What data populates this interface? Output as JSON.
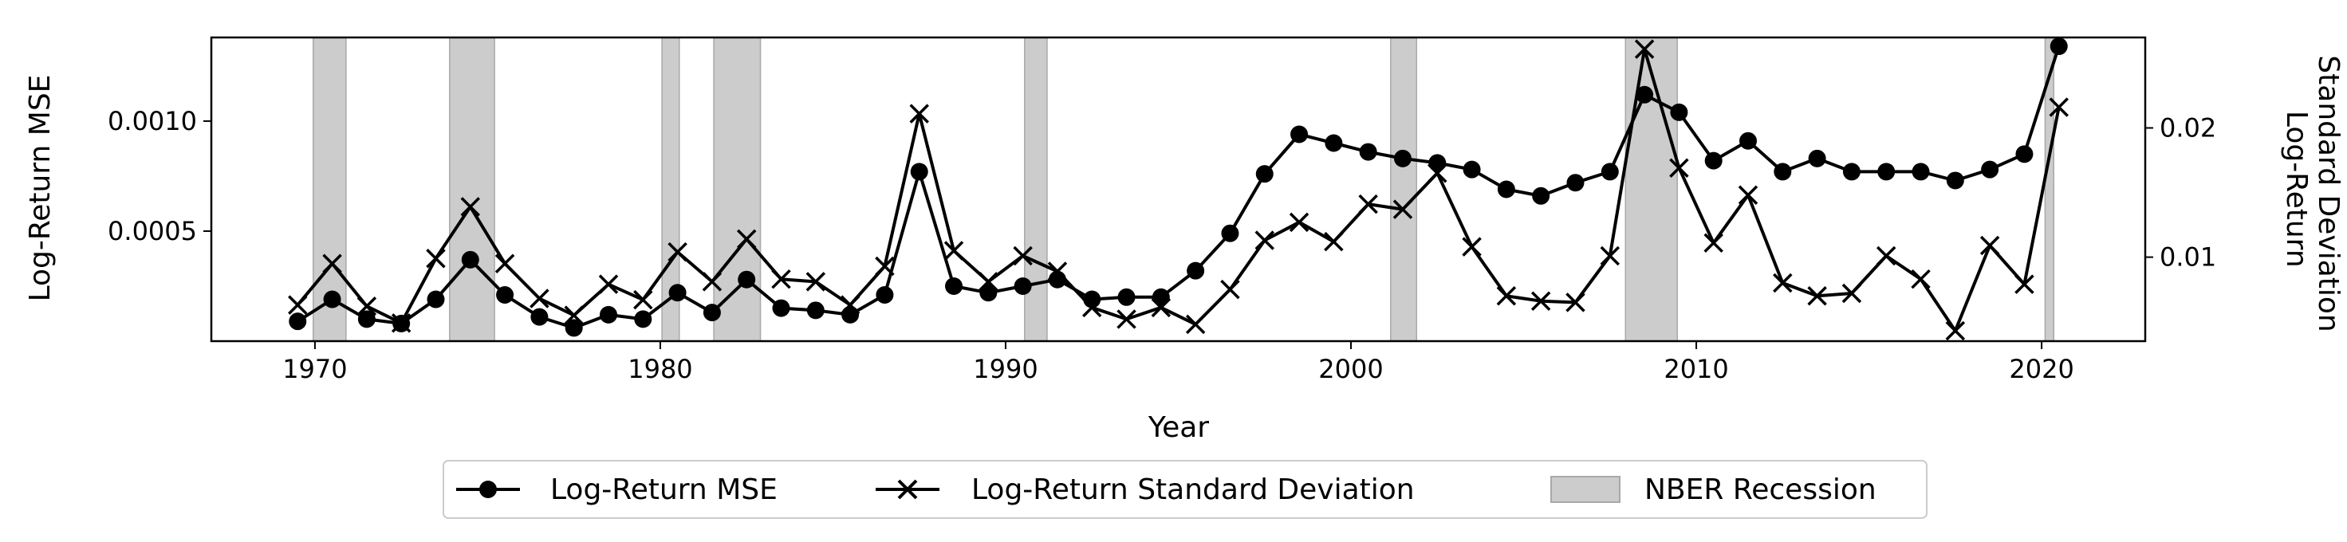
{
  "chart_data": {
    "type": "line",
    "xlabel": "Year",
    "ylabel_left": "Log-Return MSE",
    "ylabel_right": [
      "Log-Return",
      "Standard Deviation"
    ],
    "xlim": [
      1967,
      2023
    ],
    "ylim_left": [
      0.0,
      0.00138
    ],
    "ylim_right": [
      0.0035,
      0.027
    ],
    "x_ticks": [
      {
        "value": 1970,
        "label": "1970"
      },
      {
        "value": 1980,
        "label": "1980"
      },
      {
        "value": 1990,
        "label": "1990"
      },
      {
        "value": 2000,
        "label": "2000"
      },
      {
        "value": 2010,
        "label": "2010"
      },
      {
        "value": 2020,
        "label": "2020"
      }
    ],
    "y_ticks_left": [
      {
        "value": 0.0005,
        "label": "0.0005"
      },
      {
        "value": 0.001,
        "label": "0.0010"
      }
    ],
    "y_ticks_right": [
      {
        "value": 0.01,
        "label": "0.01"
      },
      {
        "value": 0.02,
        "label": "0.02"
      }
    ],
    "x": [
      1969.5,
      1970.5,
      1971.5,
      1972.5,
      1973.5,
      1974.5,
      1975.5,
      1976.5,
      1977.5,
      1978.5,
      1979.5,
      1980.5,
      1981.5,
      1982.5,
      1983.5,
      1984.5,
      1985.5,
      1986.5,
      1987.5,
      1988.5,
      1989.5,
      1990.5,
      1991.5,
      1992.5,
      1993.5,
      1994.5,
      1995.5,
      1996.5,
      1997.5,
      1998.5,
      1999.5,
      2000.5,
      2001.5,
      2002.5,
      2003.5,
      2004.5,
      2005.5,
      2006.5,
      2007.5,
      2008.5,
      2009.5,
      2010.5,
      2011.5,
      2012.5,
      2013.5,
      2014.5,
      2015.5,
      2016.5,
      2017.5,
      2018.5,
      2019.5,
      2020.5
    ],
    "series": [
      {
        "name": "Log-Return MSE",
        "axis": "left",
        "marker": "circle",
        "values": [
          9e-05,
          0.00019,
          0.0001,
          8e-05,
          0.00019,
          0.00037,
          0.00021,
          0.00011,
          6e-05,
          0.00012,
          0.0001,
          0.00022,
          0.00013,
          0.00028,
          0.00015,
          0.00014,
          0.00012,
          0.00021,
          0.00077,
          0.00025,
          0.00022,
          0.00025,
          0.00028,
          0.00019,
          0.0002,
          0.0002,
          0.00032,
          0.00049,
          0.00076,
          0.00094,
          0.0009,
          0.00086,
          0.00083,
          0.00081,
          0.00078,
          0.00069,
          0.00066,
          0.00072,
          0.00077,
          0.00112,
          0.00104,
          0.00082,
          0.00091,
          0.00077,
          0.00083,
          0.00077,
          0.00077,
          0.00077,
          0.00073,
          0.00078,
          0.00085,
          0.00134
        ]
      },
      {
        "name": "Log-Return Standard Deviation",
        "axis": "right",
        "marker": "x",
        "values": [
          0.0063,
          0.0095,
          0.0062,
          0.0049,
          0.0099,
          0.0139,
          0.0095,
          0.0068,
          0.0055,
          0.0079,
          0.0067,
          0.0104,
          0.0081,
          0.0114,
          0.0083,
          0.0081,
          0.0063,
          0.0093,
          0.0211,
          0.0105,
          0.0081,
          0.0101,
          0.0089,
          0.0061,
          0.0052,
          0.0061,
          0.0048,
          0.0075,
          0.0113,
          0.0127,
          0.0112,
          0.0141,
          0.0137,
          0.0165,
          0.0108,
          0.007,
          0.0066,
          0.0065,
          0.0101,
          0.0261,
          0.0169,
          0.0111,
          0.0148,
          0.008,
          0.007,
          0.0072,
          0.0101,
          0.0083,
          0.0043,
          0.0109,
          0.0079,
          0.0216
        ]
      }
    ],
    "recessions": [
      {
        "start": 1969.95,
        "end": 1970.9
      },
      {
        "start": 1973.9,
        "end": 1975.2
      },
      {
        "start": 1980.05,
        "end": 1980.55
      },
      {
        "start": 1981.55,
        "end": 1982.9
      },
      {
        "start": 1990.55,
        "end": 1991.2
      },
      {
        "start": 2001.15,
        "end": 2001.9
      },
      {
        "start": 2007.95,
        "end": 2009.45
      },
      {
        "start": 2020.1,
        "end": 2020.35
      }
    ],
    "legend": {
      "placement": "bottom-center",
      "items": [
        {
          "label": "Log-Return MSE",
          "kind": "line-circle"
        },
        {
          "label": "Log-Return Standard Deviation",
          "kind": "line-x"
        },
        {
          "label": "NBER Recession",
          "kind": "patch"
        }
      ]
    },
    "colors": {
      "line": "#000000",
      "recession_fill": "#cccccc",
      "recession_edge": "#a8a8a8"
    }
  }
}
